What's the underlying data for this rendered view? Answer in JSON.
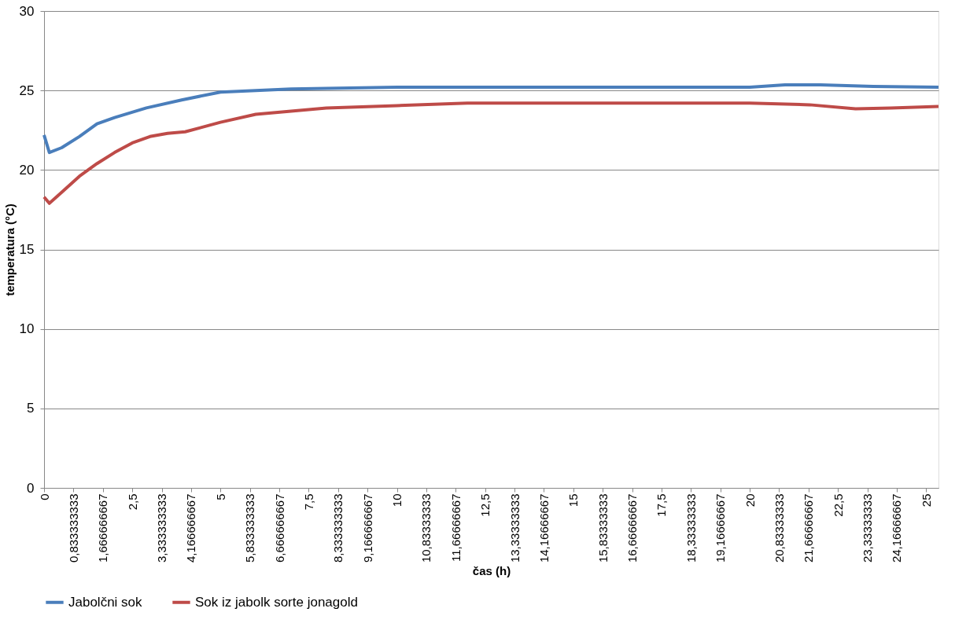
{
  "chart_data": {
    "type": "line",
    "xlabel": "čas (h)",
    "ylabel": "temperatura (°C)",
    "xlim": [
      0,
      25.35
    ],
    "ylim": [
      0,
      30
    ],
    "yticks": [
      0,
      5,
      10,
      15,
      20,
      25,
      30
    ],
    "xticks": [
      0,
      {
        "value": 0.833333333,
        "label": "0,833333333"
      },
      {
        "value": 1.666666667,
        "label": "1,666666667"
      },
      {
        "value": 2.5,
        "label": "2,5"
      },
      {
        "value": 3.333333333,
        "label": "3,333333333"
      },
      {
        "value": 4.166666667,
        "label": "4,166666667"
      },
      5,
      {
        "value": 5.833333333,
        "label": "5,833333333"
      },
      {
        "value": 6.666666667,
        "label": "6,666666667"
      },
      {
        "value": 7.5,
        "label": "7,5"
      },
      {
        "value": 8.333333333,
        "label": "8,333333333"
      },
      {
        "value": 9.166666667,
        "label": "9,166666667"
      },
      10,
      {
        "value": 10.83333333,
        "label": "10,83333333"
      },
      {
        "value": 11.66666667,
        "label": "11,66666667"
      },
      {
        "value": 12.5,
        "label": "12,5"
      },
      {
        "value": 13.33333333,
        "label": "13,33333333"
      },
      {
        "value": 14.16666667,
        "label": "14,16666667"
      },
      15,
      {
        "value": 15.83333333,
        "label": "15,83333333"
      },
      {
        "value": 16.66666667,
        "label": "16,66666667"
      },
      {
        "value": 17.5,
        "label": "17,5"
      },
      {
        "value": 18.33333333,
        "label": "18,33333333"
      },
      {
        "value": 19.16666667,
        "label": "19,16666667"
      },
      20,
      {
        "value": 20.83333333,
        "label": "20,83333333"
      },
      {
        "value": 21.66666667,
        "label": "21,66666667"
      },
      {
        "value": 22.5,
        "label": "22,5"
      },
      {
        "value": 23.33333333,
        "label": "23,33333333"
      },
      {
        "value": 24.16666667,
        "label": "24,16666667"
      },
      25
    ],
    "grid": "y",
    "legend": "bottom",
    "marker": "none",
    "line_style": "solid",
    "series": [
      {
        "name": "Jabolčni sok",
        "color": "#4a7ebb",
        "x": [
          0,
          0.15,
          0.5,
          1,
          1.5,
          2,
          2.9,
          3.9,
          5,
          6,
          7,
          10,
          15,
          20,
          21,
          22,
          23.5,
          25.35
        ],
        "values": [
          22.2,
          21.1,
          21.4,
          22.1,
          22.9,
          23.3,
          23.9,
          24.4,
          24.9,
          25.0,
          25.1,
          25.2,
          25.2,
          25.2,
          25.35,
          25.35,
          25.25,
          25.2
        ]
      },
      {
        "name": "Sok iz jabolk sorte jonagold",
        "color": "#be4b48",
        "x": [
          0,
          0.15,
          0.5,
          1,
          1.5,
          2,
          2.5,
          3,
          3.5,
          4,
          5,
          6,
          7,
          8,
          10,
          12,
          20,
          21.7,
          23,
          24,
          25.35
        ],
        "values": [
          18.3,
          17.9,
          18.6,
          19.6,
          20.4,
          21.1,
          21.7,
          22.1,
          22.3,
          22.4,
          23.0,
          23.5,
          23.7,
          23.9,
          24.05,
          24.2,
          24.2,
          24.1,
          23.85,
          23.9,
          24.0
        ]
      }
    ]
  }
}
